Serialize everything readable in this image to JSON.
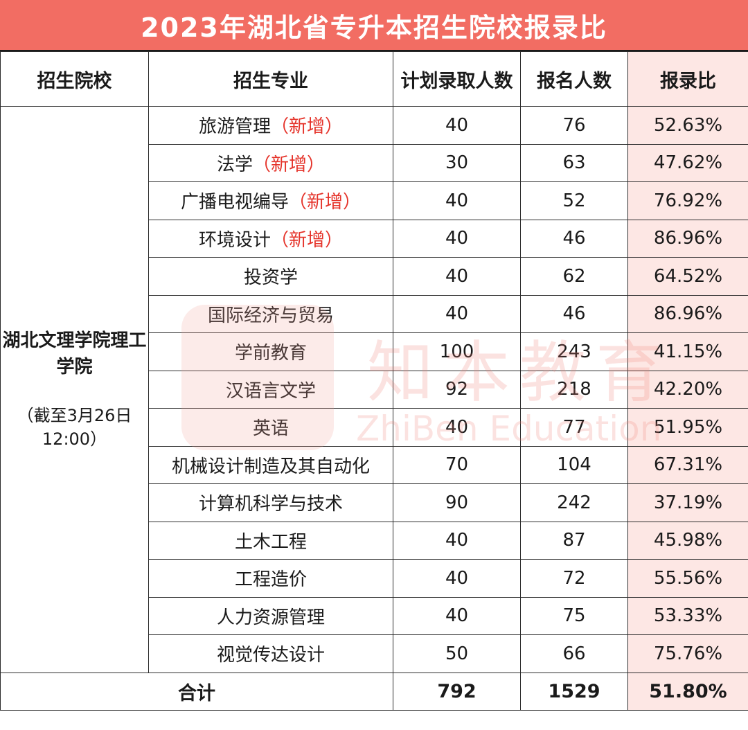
{
  "title": "2023年湖北省专升本招生院校报录比",
  "headers": {
    "school": "招生院校",
    "major": "招生专业",
    "plan": "计划录取人数",
    "applicants": "报名人数",
    "ratio": "报录比"
  },
  "school": {
    "name": "湖北文理学院理工学院",
    "note": "（截至3月26日12:00）"
  },
  "new_tag": "（新增）",
  "rows": [
    {
      "major": "旅游管理",
      "is_new": true,
      "plan": "40",
      "applicants": "76",
      "ratio": "52.63%"
    },
    {
      "major": "法学",
      "is_new": true,
      "plan": "30",
      "applicants": "63",
      "ratio": "47.62%"
    },
    {
      "major": "广播电视编导",
      "is_new": true,
      "plan": "40",
      "applicants": "52",
      "ratio": "76.92%"
    },
    {
      "major": "环境设计",
      "is_new": true,
      "plan": "40",
      "applicants": "46",
      "ratio": "86.96%"
    },
    {
      "major": "投资学",
      "is_new": false,
      "plan": "40",
      "applicants": "62",
      "ratio": "64.52%"
    },
    {
      "major": "国际经济与贸易",
      "is_new": false,
      "plan": "40",
      "applicants": "46",
      "ratio": "86.96%"
    },
    {
      "major": "学前教育",
      "is_new": false,
      "plan": "100",
      "applicants": "243",
      "ratio": "41.15%"
    },
    {
      "major": "汉语言文学",
      "is_new": false,
      "plan": "92",
      "applicants": "218",
      "ratio": "42.20%"
    },
    {
      "major": "英语",
      "is_new": false,
      "plan": "40",
      "applicants": "77",
      "ratio": "51.95%"
    },
    {
      "major": "机械设计制造及其自动化",
      "is_new": false,
      "plan": "70",
      "applicants": "104",
      "ratio": "67.31%"
    },
    {
      "major": "计算机科学与技术",
      "is_new": false,
      "plan": "90",
      "applicants": "242",
      "ratio": "37.19%"
    },
    {
      "major": "土木工程",
      "is_new": false,
      "plan": "40",
      "applicants": "87",
      "ratio": "45.98%"
    },
    {
      "major": "工程造价",
      "is_new": false,
      "plan": "40",
      "applicants": "72",
      "ratio": "55.56%"
    },
    {
      "major": "人力资源管理",
      "is_new": false,
      "plan": "40",
      "applicants": "75",
      "ratio": "53.33%"
    },
    {
      "major": "视觉传达设计",
      "is_new": false,
      "plan": "50",
      "applicants": "66",
      "ratio": "75.76%"
    }
  ],
  "total": {
    "label": "合计",
    "plan": "792",
    "applicants": "1529",
    "ratio": "51.80%"
  },
  "watermark": {
    "cn": "知本教育",
    "en": "ZhiBen Education"
  },
  "colors": {
    "title_bg": "#f26d63",
    "ratio_bg": "#fde7e4",
    "new_tag": "#e5332a"
  }
}
